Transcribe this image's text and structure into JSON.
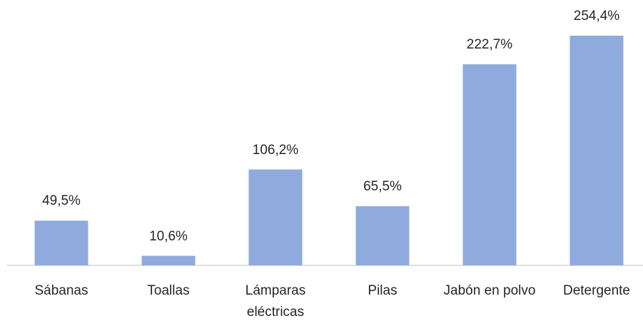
{
  "chart_data": {
    "type": "bar",
    "categories": [
      "Sábanas",
      "Toallas",
      "Lámparas eléctricas",
      "Pilas",
      "Jabón en polvo",
      "Detergente"
    ],
    "values": [
      49.5,
      10.6,
      106.2,
      65.5,
      222.7,
      254.4
    ],
    "value_labels": [
      "49,5%",
      "10,6%",
      "106,2%",
      "65,5%",
      "222,7%",
      "254,4%"
    ],
    "color": "#8faadc"
  }
}
